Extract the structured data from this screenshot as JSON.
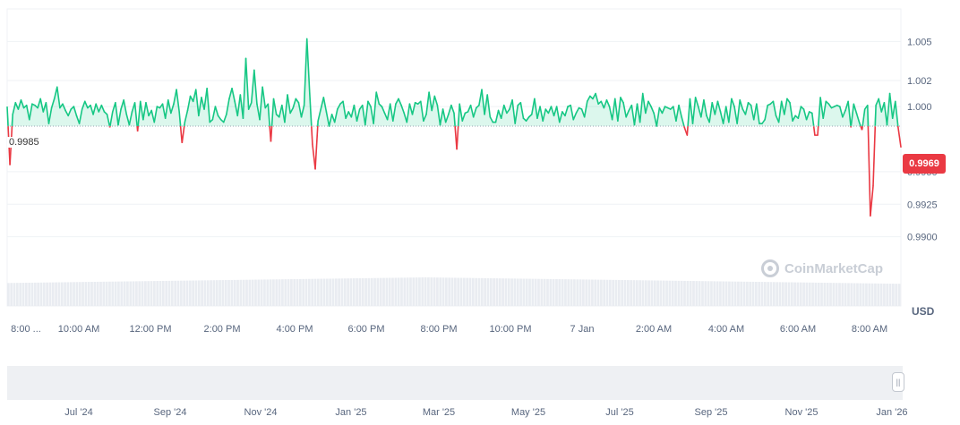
{
  "currency": "USD",
  "watermark": "CoinMarketCap",
  "base_value_label": "0.9985",
  "current_price_label": "0.9969",
  "colors": {
    "up": "#16c784",
    "down": "#ea3943",
    "grid": "#eff2f5",
    "text": "#58667e",
    "volume": "#e9ecf1"
  },
  "navigator": {
    "handle_icon": "pause-grip-icon"
  },
  "chart_data": {
    "type": "area",
    "baseline": 0.9985,
    "ylim": [
      0.9875,
      1.0075
    ],
    "y_ticks": [
      1.005,
      1.002,
      1.0,
      0.995,
      0.9925,
      0.99
    ],
    "y_tick_labels": [
      "1.005",
      "1.002",
      "1.000",
      "0.9950",
      "0.9925",
      "0.9900"
    ],
    "x_tick_labels": [
      "8:00 ...",
      "10:00 AM",
      "12:00 PM",
      "2:00 PM",
      "4:00 PM",
      "6:00 PM",
      "8:00 PM",
      "10:00 PM",
      "7 Jan",
      "2:00 AM",
      "4:00 AM",
      "6:00 AM",
      "8:00 AM"
    ],
    "nav_tick_labels": [
      "Jul '24",
      "Sep '24",
      "Nov '24",
      "Jan '25",
      "Mar '25",
      "May '25",
      "Jul '25",
      "Sep '25",
      "Nov '25",
      "Jan '26"
    ],
    "series": [
      {
        "values": [
          1.0,
          0.9955,
          0.9994,
          1.0003,
          0.9998,
          1.0005,
          0.9999,
          1.0001,
          0.999,
          1.0002,
          1.0001,
          0.9999,
          1.0006,
          0.9996,
          1.0003,
          0.9987,
          0.9999,
          1.0006,
          1.0015,
          0.9999,
          1.0002,
          0.9997,
          0.9993,
          0.9998,
          1.0,
          0.9993,
          0.9987,
          0.9998,
          1.0004,
          0.9999,
          1.0001,
          0.9994,
          1.0002,
          0.9996,
          1.0001,
          0.9996,
          0.9994,
          0.9984,
          0.9996,
          1.0003,
          0.9986,
          0.9998,
          1.0005,
          0.9994,
          0.9986,
          0.9996,
          1.0003,
          0.9981,
          1.0004,
          0.999,
          1.0003,
          0.9993,
          0.9997,
          0.9988,
          1.0,
          0.9999,
          1.0002,
          0.9991,
          1.0005,
          0.9995,
          1.0002,
          1.0013,
          0.9996,
          0.9972,
          0.9988,
          0.9997,
          1.0008,
          1.0004,
          1.0013,
          0.9993,
          1.0007,
          0.9998,
          1.0014,
          0.9988,
          0.999,
          1.0,
          0.9993,
          0.999,
          0.9988,
          0.9994,
          1.0006,
          1.0014,
          1.0004,
          0.9993,
          1.0009,
          0.9991,
          1.0037,
          0.9998,
          1.0003,
          1.0028,
          1.0002,
          0.999,
          1.0015,
          0.9999,
          1.0002,
          0.9973,
          1.0006,
          0.9994,
          0.9992,
          1.0001,
          0.9988,
          1.0009,
          0.9995,
          0.9999,
          1.0006,
          1.0003,
          0.9992,
          1.0001,
          1.0052,
          1.001,
          0.9971,
          0.9952,
          0.9989,
          0.9998,
          1.0007,
          0.9996,
          0.9985,
          0.9994,
          0.9988,
          0.9998,
          1.0002,
          1.0004,
          0.9991,
          0.9996,
          0.9992,
          1.0001,
          0.9989,
          0.9998,
          1.0001,
          0.9986,
          1.0004,
          1.0,
          0.9987,
          1.0011,
          1.0002,
          1.0,
          0.9995,
          0.999,
          1.0002,
          0.9989,
          1.0002,
          1.0006,
          1.0001,
          0.9995,
          0.9988,
          1.0002,
          0.9994,
          1.0003,
          1.0002,
          1.0004,
          0.9989,
          0.9994,
          1.0011,
          0.9997,
          1.0008,
          1.0001,
          0.9986,
          0.9998,
          0.9988,
          0.9994,
          1.0001,
          0.9995,
          0.9967,
          1.0002,
          0.9989,
          0.9995,
          0.9996,
          1.0001,
          0.9992,
          0.9999,
          1.0001,
          1.0013,
          0.9994,
          1.0009,
          0.9992,
          0.9988,
          0.9988,
          0.9997,
          0.9991,
          1.0001,
          0.9995,
          0.9998,
          1.0005,
          0.9987,
          1.0001,
          1.0003,
          0.9991,
          0.9989,
          0.9992,
          0.9994,
          1.0006,
          0.9991,
          1.0,
          0.9989,
          0.9998,
          0.9995,
          1.0,
          0.9993,
          1.0,
          0.9988,
          0.9996,
          0.9993,
          1.0,
          1.0001,
          0.999,
          0.9995,
          0.9999,
          0.9998,
          0.9992,
          1.0004,
          1.0008,
          1.0006,
          1.001,
          1.0002,
          1.0004,
          0.9999,
          1.0005,
          1.0,
          0.999,
          1.0006,
          0.9989,
          1.0007,
          1.0003,
          0.9992,
          0.9997,
          1.0001,
          0.9986,
          1.0002,
          0.9988,
          1.001,
          0.9995,
          1.0004,
          1.0,
          0.9995,
          0.9985,
          0.9999,
          0.9995,
          1.0,
          0.9999,
          0.9998,
          1.0,
          0.9989,
          1.0001,
          0.9992,
          0.9984,
          0.9978,
          1.0006,
          0.9987,
          1.0007,
          1.0,
          0.9992,
          1.0005,
          0.9993,
          0.9988,
          1.0003,
          0.9994,
          1.0004,
          0.9996,
          0.9987,
          1.0,
          0.9988,
          1.0006,
          1.0,
          0.9987,
          1.0005,
          0.9998,
          0.9994,
          1.0003,
          1.0001,
          0.999,
          1.0002,
          0.9987,
          0.9987,
          0.999,
          1.0001,
          1.0002,
          1.0004,
          0.9993,
          0.9988,
          1.0004,
          0.9994,
          1.0006,
          1.0003,
          0.9989,
          0.9993,
          0.9991,
          1.0,
          0.9998,
          0.999,
          0.9996,
          0.9995,
          0.9978,
          0.9978,
          1.0007,
          0.9991,
          1.0004,
          1.0002,
          0.9999,
          1.0,
          1.0001,
          1.0,
          0.9992,
          0.9997,
          1.0004,
          0.9984,
          1.0002,
          0.9995,
          0.9988,
          0.9982,
          0.9998,
          1.0001,
          0.9916,
          0.9939,
          1.0001,
          1.0006,
          0.9996,
          1.0003,
          0.9986,
          1.001,
          0.9991,
          1.0004,
          0.9984,
          0.9969
        ]
      }
    ]
  }
}
